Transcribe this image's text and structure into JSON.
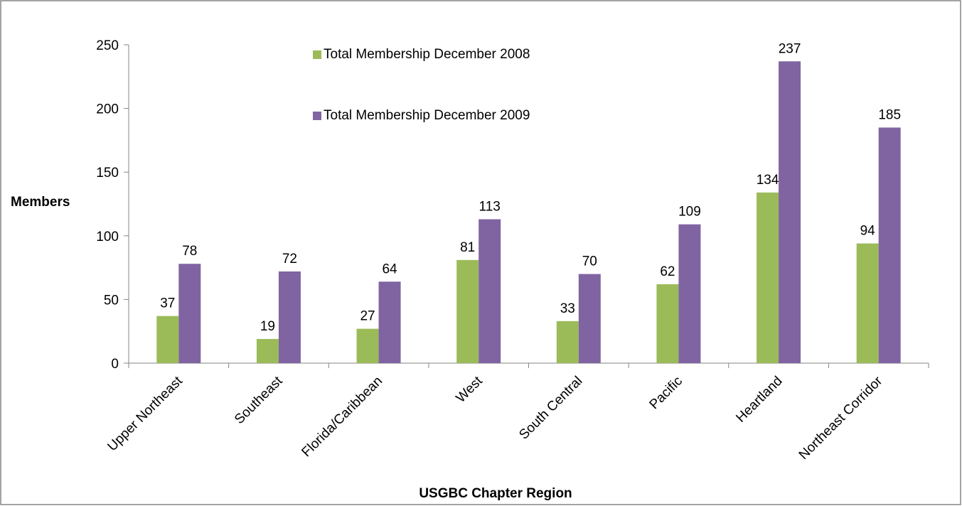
{
  "chart_data": {
    "type": "bar",
    "x_label": "USGBC Chapter Region",
    "y_label": "Members",
    "categories": [
      "Upper Northeast",
      "Southeast",
      "Florida/Caribbean",
      "West",
      "South Central",
      "Pacific",
      "Heartland",
      "Northeast Corridor"
    ],
    "series": [
      {
        "name": "Total Membership December 2008",
        "color": "#9bbb59",
        "values": [
          37,
          19,
          27,
          81,
          33,
          62,
          134,
          94
        ]
      },
      {
        "name": "Total Membership December 2009",
        "color": "#8064a2",
        "values": [
          78,
          72,
          64,
          113,
          70,
          109,
          237,
          185
        ]
      }
    ],
    "ylim": [
      0,
      250
    ],
    "yticks": [
      0,
      50,
      100,
      150,
      200,
      250
    ],
    "grid": false
  }
}
